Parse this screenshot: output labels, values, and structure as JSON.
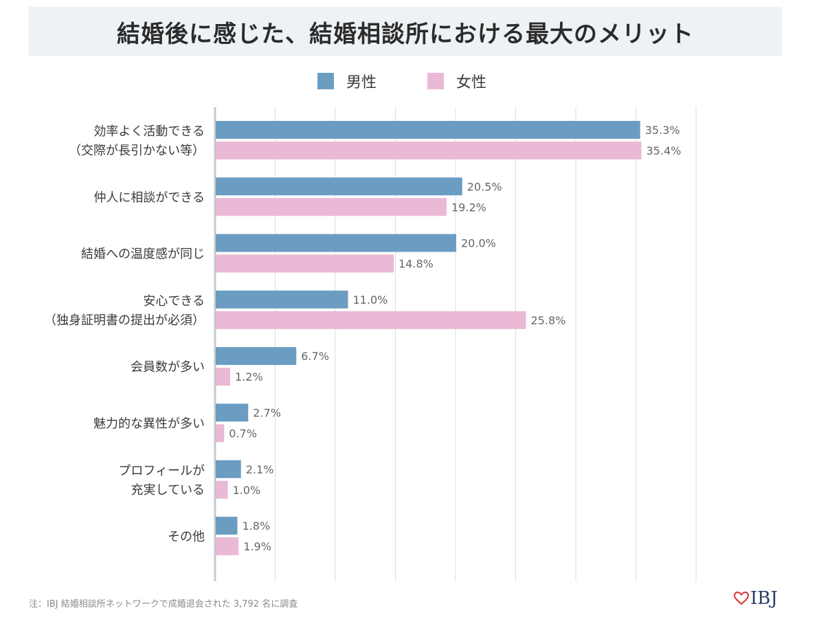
{
  "title": "結婚後に感じた、結婚相談所における最大のメリット",
  "footnote": "注：IBJ 結婚相談所ネットワークで成婚退会された 3,792 名に調査",
  "logo_text": "IBJ",
  "colors": {
    "male": "#6b9dc3",
    "female": "#e9b9d5",
    "grid": "#d8dde2",
    "axis": "#c4c8cc"
  },
  "chart_data": {
    "type": "bar",
    "orientation": "horizontal",
    "categories": [
      [
        "効率よく活動できる",
        "（交際が長引かない等）"
      ],
      [
        "仲人に相談ができる"
      ],
      [
        "結婚への温度感が同じ"
      ],
      [
        "安心できる",
        "（独身証明書の提出が必須）"
      ],
      [
        "会員数が多い"
      ],
      [
        "魅力的な異性が多い"
      ],
      [
        "プロフィールが",
        "充実している"
      ],
      [
        "その他"
      ]
    ],
    "series": [
      {
        "name": "男性",
        "values": [
          35.3,
          20.5,
          20.0,
          11.0,
          6.7,
          2.7,
          2.1,
          1.8
        ],
        "labels": [
          "35.3%",
          "20.5%",
          "20.0%",
          "11.0%",
          "6.7%",
          "2.7%",
          "2.1%",
          "1.8%"
        ]
      },
      {
        "name": "女性",
        "values": [
          35.4,
          19.2,
          14.8,
          25.8,
          1.2,
          0.7,
          1.0,
          1.9
        ],
        "labels": [
          "35.4%",
          "19.2%",
          "14.8%",
          "25.8%",
          "1.2%",
          "0.7%",
          "1.0%",
          "1.9%"
        ]
      }
    ],
    "xlim": [
      0,
      40
    ],
    "grid": true,
    "legend": "top-center"
  }
}
